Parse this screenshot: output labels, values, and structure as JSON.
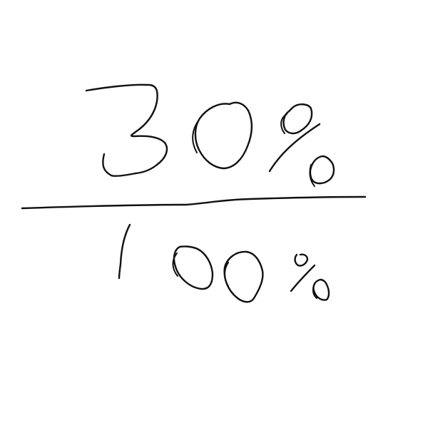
{
  "fraction": {
    "numerator": "30%",
    "denominator": "100%"
  },
  "colors": {
    "ink": "#111111",
    "background": "#ffffff"
  }
}
